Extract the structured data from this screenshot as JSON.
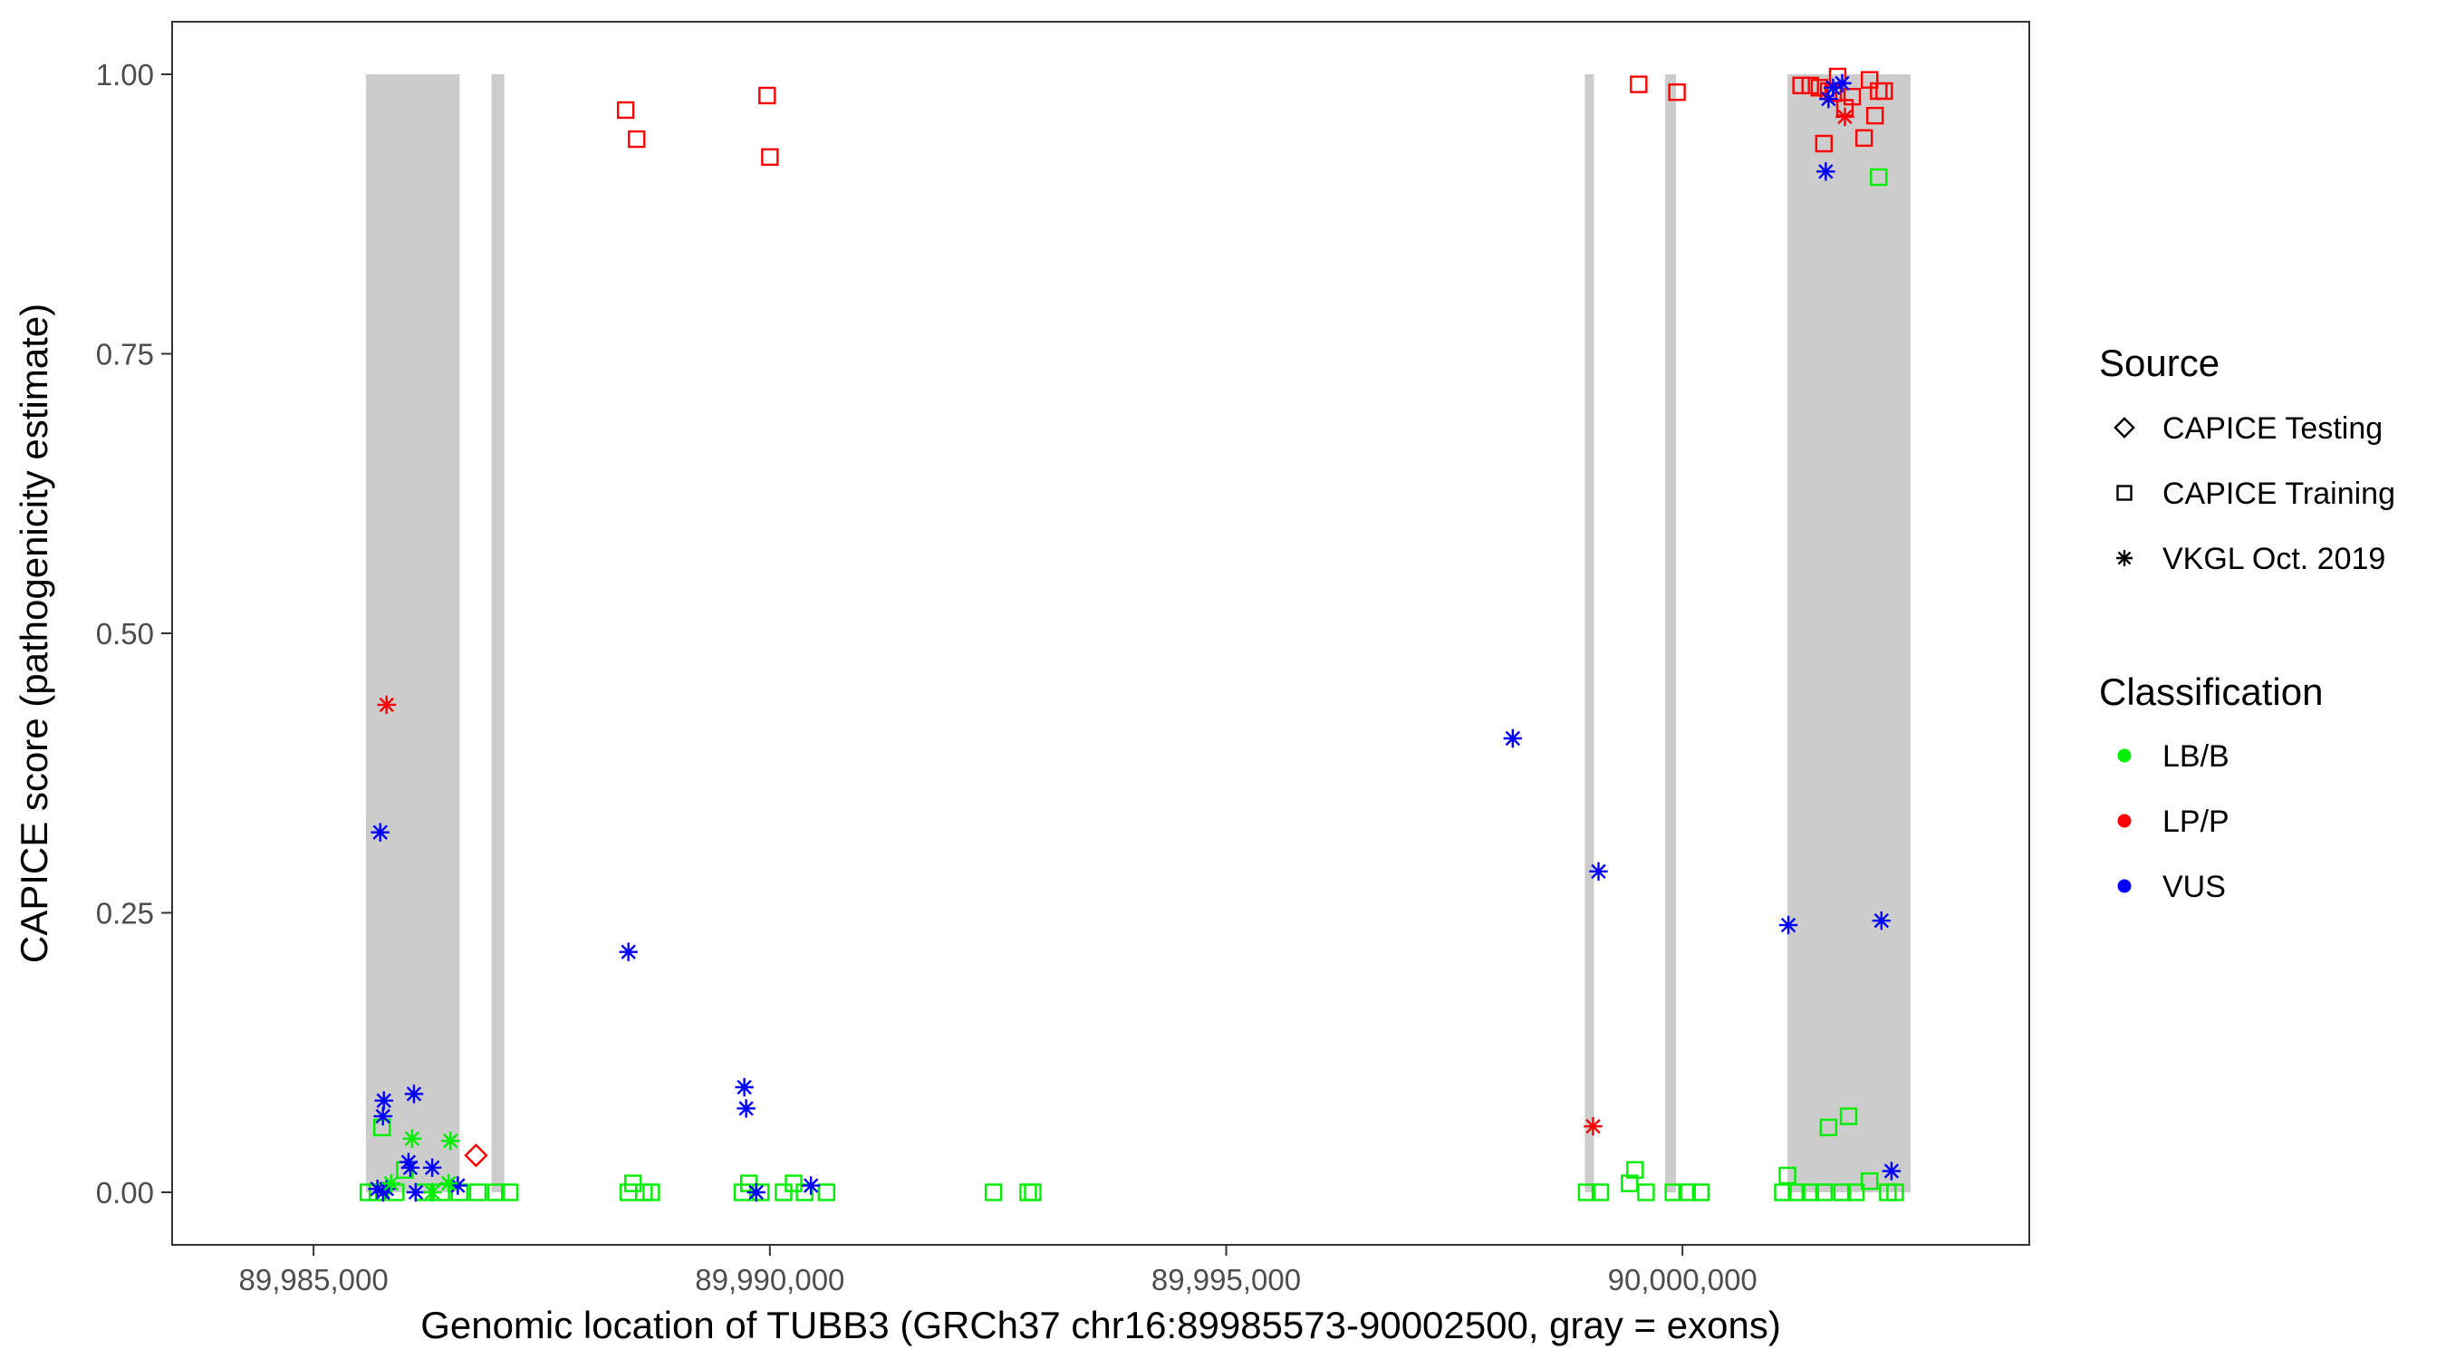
{
  "chart_data": {
    "type": "scatter",
    "xlabel": "Genomic location of TUBB3 (GRCh37 chr16:89985573-90002500, gray = exons)",
    "ylabel": "CAPICE score (pathogenicity estimate)",
    "xlim": [
      89983450,
      90003800
    ],
    "ylim": [
      -0.047,
      1.047
    ],
    "x_ticks": [
      {
        "value": 89985000,
        "label": "89,985,000"
      },
      {
        "value": 89990000,
        "label": "89,990,000"
      },
      {
        "value": 89995000,
        "label": "89,995,000"
      },
      {
        "value": 90000000,
        "label": "90,000,000"
      }
    ],
    "y_ticks": [
      {
        "value": 0.0,
        "label": "0.00"
      },
      {
        "value": 0.25,
        "label": "0.25"
      },
      {
        "value": 0.5,
        "label": "0.50"
      },
      {
        "value": 0.75,
        "label": "0.75"
      },
      {
        "value": 1.0,
        "label": "1.00"
      }
    ],
    "grid": false,
    "exons": [
      [
        89985573,
        89986600
      ],
      [
        89986950,
        89987090
      ],
      [
        89998930,
        89999030
      ],
      [
        89999810,
        89999930
      ],
      [
        90001150,
        90002500
      ]
    ],
    "legend": {
      "position": "right",
      "source_title": "Source",
      "source_items": [
        {
          "shape": "diamond",
          "label": "CAPICE Testing"
        },
        {
          "shape": "square",
          "label": "CAPICE Training"
        },
        {
          "shape": "asterisk",
          "label": "VKGL Oct. 2019"
        }
      ],
      "class_title": "Classification",
      "class_items": [
        {
          "key": "LB/B",
          "label": "LB/B",
          "color": "#00ee00"
        },
        {
          "key": "LP/P",
          "label": "LP/P",
          "color": "#ff0000"
        },
        {
          "key": "VUS",
          "label": "VUS",
          "color": "#0000ff"
        }
      ]
    },
    "series": [
      {
        "source": "CAPICE Training",
        "classification": "LP/P",
        "points": [
          [
            89988420,
            0.968
          ],
          [
            89988540,
            0.942
          ],
          [
            89989970,
            0.981
          ],
          [
            89990000,
            0.926
          ],
          [
            89999520,
            0.991
          ],
          [
            89999940,
            0.984
          ],
          [
            90001300,
            0.99
          ],
          [
            90001400,
            0.99
          ],
          [
            90001500,
            0.988
          ],
          [
            90001550,
            0.938
          ],
          [
            90001600,
            0.985
          ],
          [
            90001650,
            0.983
          ],
          [
            90001700,
            0.998
          ],
          [
            90001780,
            0.97
          ],
          [
            90001860,
            0.98
          ],
          [
            90001990,
            0.943
          ],
          [
            90002050,
            0.995
          ],
          [
            90002110,
            0.963
          ],
          [
            90002150,
            0.985
          ],
          [
            90002210,
            0.985
          ]
        ]
      },
      {
        "source": "CAPICE Training",
        "classification": "LB/B",
        "points": [
          [
            89985750,
            0.058
          ],
          [
            89985600,
            0.0
          ],
          [
            89985700,
            0.0
          ],
          [
            89985900,
            0.0
          ],
          [
            89986000,
            0.02
          ],
          [
            89986200,
            0.0
          ],
          [
            89986400,
            0.0
          ],
          [
            89986600,
            0.0
          ],
          [
            89986800,
            0.0
          ],
          [
            89987000,
            0.0
          ],
          [
            89987150,
            0.0
          ],
          [
            89988450,
            0.0
          ],
          [
            89988500,
            0.008
          ],
          [
            89988620,
            0.0
          ],
          [
            89988700,
            0.0
          ],
          [
            89989700,
            0.0
          ],
          [
            89989770,
            0.008
          ],
          [
            89989900,
            0.0
          ],
          [
            89990150,
            0.0
          ],
          [
            89990260,
            0.008
          ],
          [
            89990380,
            0.0
          ],
          [
            89990620,
            0.0
          ],
          [
            89992450,
            0.0
          ],
          [
            89992830,
            0.0
          ],
          [
            89992880,
            0.0
          ],
          [
            89998950,
            0.0
          ],
          [
            89999100,
            0.0
          ],
          [
            89999420,
            0.008
          ],
          [
            89999480,
            0.02
          ],
          [
            89999600,
            0.0
          ],
          [
            89999900,
            0.0
          ],
          [
            90000050,
            0.0
          ],
          [
            90000200,
            0.0
          ],
          [
            90001100,
            0.0
          ],
          [
            90001150,
            0.015
          ],
          [
            90001250,
            0.0
          ],
          [
            90001400,
            0.0
          ],
          [
            90001550,
            0.0
          ],
          [
            90001600,
            0.058
          ],
          [
            90001750,
            0.0
          ],
          [
            90001820,
            0.068
          ],
          [
            90001900,
            0.0
          ],
          [
            90002050,
            0.01
          ],
          [
            90002150,
            0.908
          ],
          [
            90002250,
            0.0
          ],
          [
            90002330,
            0.0
          ]
        ]
      },
      {
        "source": "CAPICE Testing",
        "classification": "LP/P",
        "points": [
          [
            89986780,
            0.033
          ]
        ]
      },
      {
        "source": "VKGL Oct. 2019",
        "classification": "LP/P",
        "points": [
          [
            89985800,
            0.436
          ],
          [
            89999020,
            0.059
          ],
          [
            90001780,
            0.962
          ]
        ]
      },
      {
        "source": "VKGL Oct. 2019",
        "classification": "VUS",
        "points": [
          [
            89985730,
            0.322
          ],
          [
            89985760,
            0.068
          ],
          [
            89985770,
            0.082
          ],
          [
            89985700,
            0.003
          ],
          [
            89985760,
            0.0
          ],
          [
            89985800,
            0.003
          ],
          [
            89986100,
            0.088
          ],
          [
            89986040,
            0.027
          ],
          [
            89986060,
            0.022
          ],
          [
            89986120,
            0.0
          ],
          [
            89986300,
            0.022
          ],
          [
            89986580,
            0.006
          ],
          [
            89988450,
            0.215
          ],
          [
            89989720,
            0.094
          ],
          [
            89989740,
            0.075
          ],
          [
            89989850,
            0.0
          ],
          [
            89990450,
            0.006
          ],
          [
            89998140,
            0.406
          ],
          [
            89999080,
            0.287
          ],
          [
            90001160,
            0.239
          ],
          [
            90001570,
            0.913
          ],
          [
            90001600,
            0.978
          ],
          [
            90001650,
            0.988
          ],
          [
            90001750,
            0.992
          ],
          [
            90002180,
            0.243
          ],
          [
            90002290,
            0.019
          ]
        ]
      },
      {
        "source": "VKGL Oct. 2019",
        "classification": "LB/B",
        "points": [
          [
            89985850,
            0.008
          ],
          [
            89986080,
            0.048
          ],
          [
            89986500,
            0.046
          ],
          [
            89986300,
            0.0
          ],
          [
            89986480,
            0.008
          ]
        ]
      }
    ]
  }
}
